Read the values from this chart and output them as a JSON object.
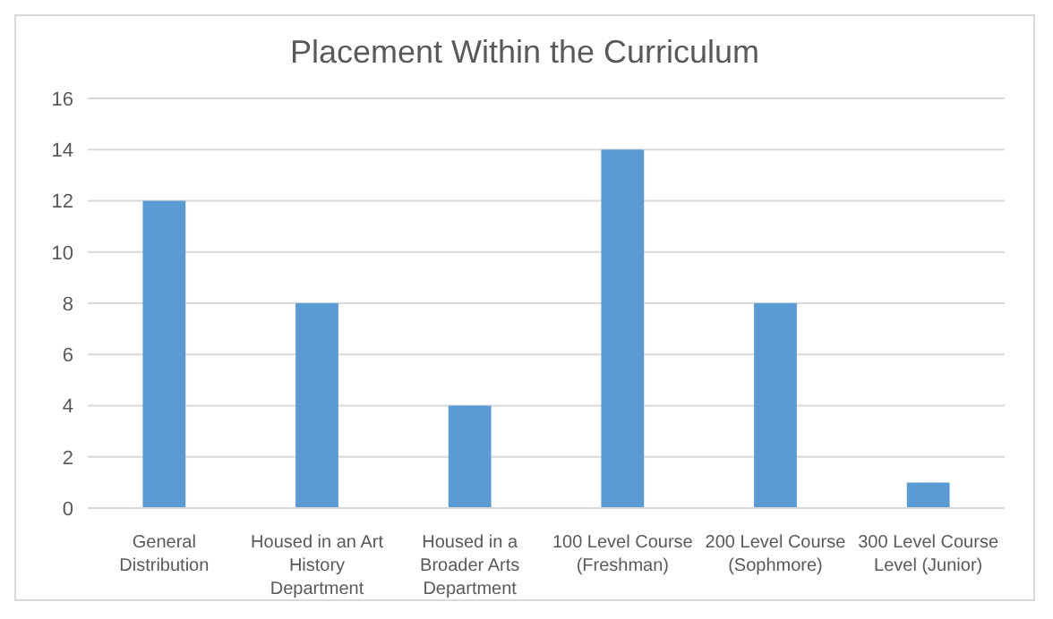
{
  "chart_data": {
    "type": "bar",
    "title": "Placement Within the Curriculum",
    "categories": [
      "General Distribution",
      "Housed in an Art History Department",
      "Housed in a Broader Arts Department",
      "100 Level Course (Freshman)",
      "200 Level Course (Sophmore)",
      "300 Level Course Level (Junior)"
    ],
    "values": [
      12,
      8,
      4,
      14,
      8,
      1
    ],
    "color": "#5b9bd5",
    "ylim": [
      0,
      16
    ],
    "yticks": [
      0,
      2,
      4,
      6,
      8,
      10,
      12,
      14,
      16
    ],
    "grid": "y"
  }
}
